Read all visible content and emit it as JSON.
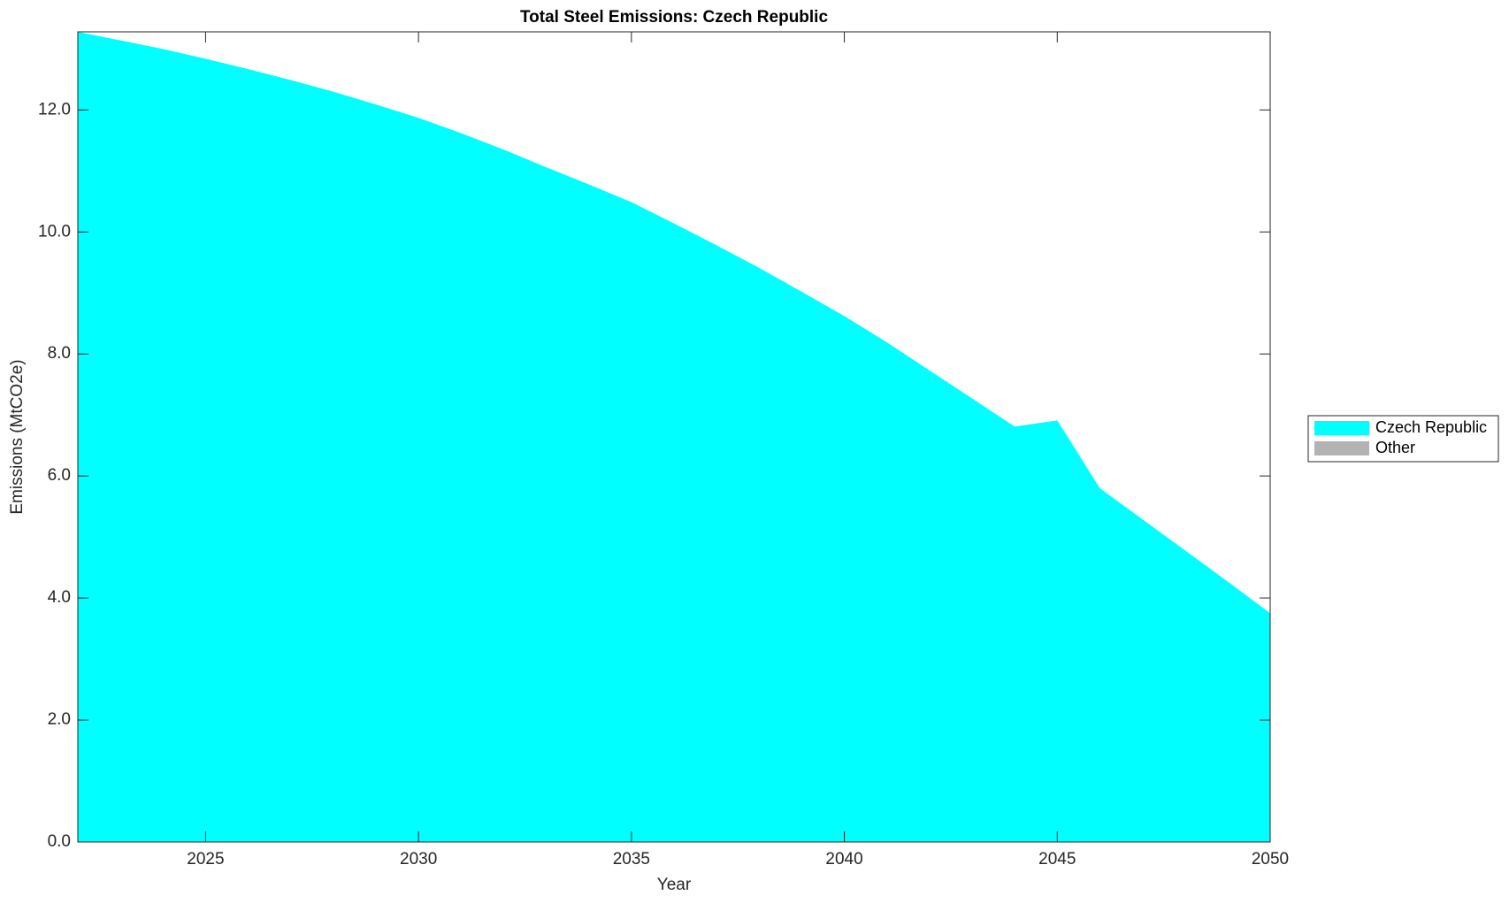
{
  "chart_data": {
    "type": "stacked_area",
    "title": "Total Steel Emissions: Czech Republic",
    "x_label": "Year",
    "y_label": "Emissions (MtCO2e)",
    "x": [
      2022,
      2023,
      2024,
      2025,
      2026,
      2027,
      2028,
      2029,
      2030,
      2031,
      2032,
      2033,
      2034,
      2035,
      2036,
      2037,
      2038,
      2039,
      2040,
      2041,
      2042,
      2043,
      2044,
      2045,
      2046,
      2047,
      2048,
      2049,
      2050
    ],
    "series": [
      {
        "name": "Czech Republic",
        "color": "#00ffff",
        "values": [
          13.28,
          13.14,
          13.0,
          12.84,
          12.67,
          12.49,
          12.3,
          12.09,
          11.87,
          11.62,
          11.35,
          11.06,
          10.78,
          10.49,
          10.14,
          9.78,
          9.41,
          9.02,
          8.62,
          8.19,
          7.73,
          7.27,
          6.81,
          6.91,
          5.8,
          5.29,
          4.78,
          4.27,
          3.75
        ]
      },
      {
        "name": "Other",
        "color": "#b3b3b3",
        "values": [
          0,
          0,
          0,
          0,
          0,
          0,
          0,
          0,
          0,
          0,
          0,
          0,
          0,
          0,
          0,
          0,
          0,
          0,
          0,
          0,
          0,
          0,
          0,
          0,
          0,
          0,
          0,
          0,
          0
        ]
      }
    ],
    "xlim": [
      2022,
      2050
    ],
    "xticks": [
      2025,
      2030,
      2035,
      2040,
      2045,
      2050
    ],
    "ylim": [
      0,
      13.28
    ],
    "yticks": [
      {
        "value": 0,
        "label": "0.0"
      },
      {
        "value": 2,
        "label": "2.0"
      },
      {
        "value": 4,
        "label": "4.0"
      },
      {
        "value": 6,
        "label": "6.0"
      },
      {
        "value": 8,
        "label": "8.0"
      },
      {
        "value": 10,
        "label": "10.0"
      },
      {
        "value": 12,
        "label": "12.0"
      }
    ],
    "grid": false,
    "legend": "right"
  }
}
